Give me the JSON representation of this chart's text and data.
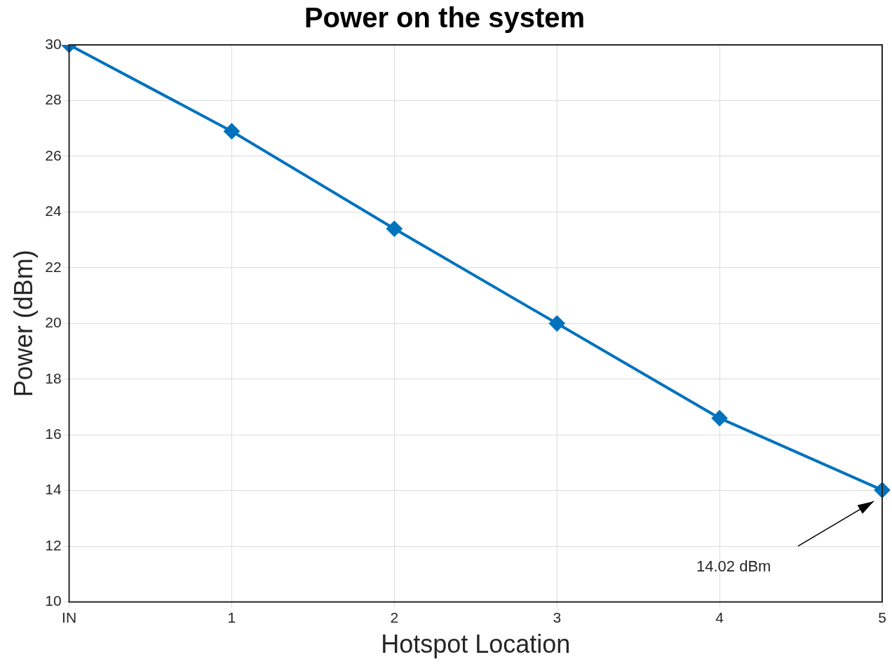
{
  "chart_data": {
    "type": "line",
    "title": "Power on the system",
    "xlabel": "Hotspot Location",
    "ylabel": "Power (dBm)",
    "categories": [
      "IN",
      "1",
      "2",
      "3",
      "4",
      "5"
    ],
    "series": [
      {
        "color": "#0072bd",
        "values": [
          30,
          26.9,
          23.4,
          20,
          16.6,
          14.02
        ]
      }
    ],
    "ylim": [
      10,
      30
    ],
    "yticks": [
      10,
      12,
      14,
      16,
      18,
      20,
      22,
      24,
      26,
      28,
      30
    ],
    "grid": true,
    "marker": "diamond",
    "line_style": "solid",
    "legend": false,
    "annotations": [
      "14.02 dBm"
    ]
  }
}
